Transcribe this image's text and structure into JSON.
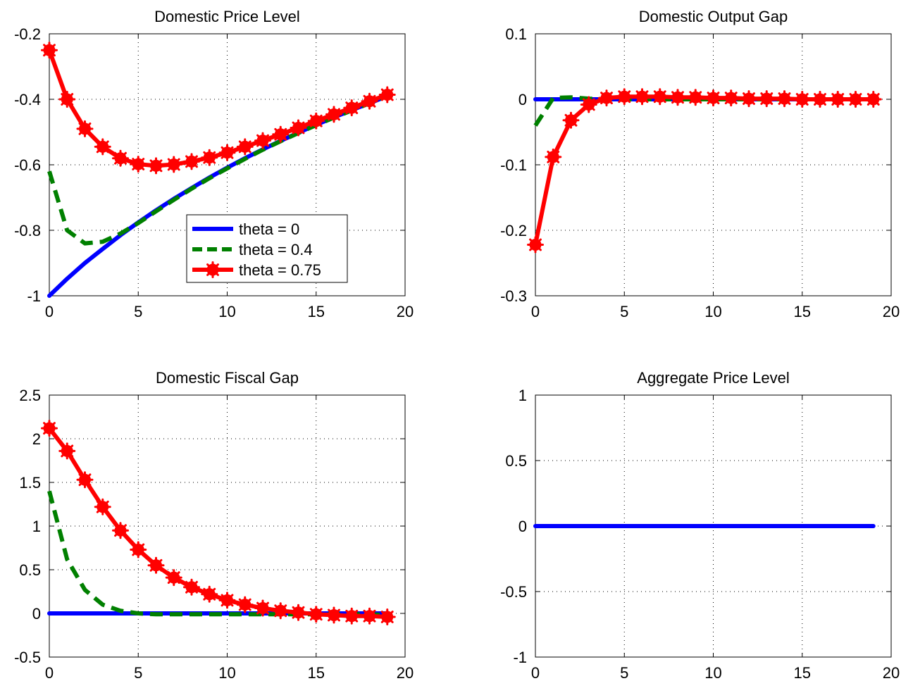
{
  "colors": {
    "theta_0": "#0000ff",
    "theta_0_4": "#008000",
    "theta_0_75": "#ff0000",
    "axes": "#000000",
    "background": "#ffffff"
  },
  "chart_data": [
    {
      "type": "line",
      "title": "Domestic Price Level",
      "xlabel": "",
      "ylabel": "",
      "xlim": [
        0,
        20
      ],
      "ylim": [
        -1,
        -0.2
      ],
      "xticks": [
        0,
        5,
        10,
        15,
        20
      ],
      "xtick_labels": [
        "0",
        "5",
        "10",
        "15",
        "20"
      ],
      "yticks": [
        -1,
        -0.8,
        -0.6,
        -0.4,
        -0.2
      ],
      "ytick_labels": [
        "-1",
        "-0.8",
        "-0.6",
        "-0.4",
        "-0.2"
      ],
      "grid": true,
      "legend": {
        "placement": "center-right",
        "entries": [
          "theta = 0",
          "theta = 0.4",
          "theta = 0.75"
        ]
      },
      "x": [
        0,
        1,
        2,
        3,
        4,
        5,
        6,
        7,
        8,
        9,
        10,
        11,
        12,
        13,
        14,
        15,
        16,
        17,
        18,
        19
      ],
      "series": [
        {
          "name": "theta = 0",
          "style": "solid",
          "color": "#0000ff",
          "values": [
            -1.0,
            -0.948,
            -0.9,
            -0.857,
            -0.815,
            -0.776,
            -0.739,
            -0.704,
            -0.671,
            -0.639,
            -0.609,
            -0.58,
            -0.553,
            -0.527,
            -0.502,
            -0.478,
            -0.455,
            -0.433,
            -0.412,
            -0.39
          ]
        },
        {
          "name": "theta = 0.4",
          "style": "dashed",
          "color": "#008000",
          "values": [
            -0.62,
            -0.8,
            -0.84,
            -0.835,
            -0.81,
            -0.778,
            -0.742,
            -0.707,
            -0.673,
            -0.641,
            -0.611,
            -0.582,
            -0.554,
            -0.528,
            -0.503,
            -0.479,
            -0.456,
            -0.434,
            -0.412,
            -0.39
          ]
        },
        {
          "name": "theta = 0.75",
          "style": "solid-markers",
          "color": "#ff0000",
          "values": [
            -0.25,
            -0.4,
            -0.49,
            -0.545,
            -0.58,
            -0.598,
            -0.603,
            -0.599,
            -0.59,
            -0.578,
            -0.563,
            -0.545,
            -0.526,
            -0.507,
            -0.487,
            -0.466,
            -0.446,
            -0.426,
            -0.406,
            -0.386
          ]
        }
      ]
    },
    {
      "type": "line",
      "title": "Domestic Output Gap",
      "xlabel": "",
      "ylabel": "",
      "xlim": [
        0,
        20
      ],
      "ylim": [
        -0.3,
        0.1
      ],
      "xticks": [
        0,
        5,
        10,
        15,
        20
      ],
      "xtick_labels": [
        "0",
        "5",
        "10",
        "15",
        "20"
      ],
      "yticks": [
        -0.3,
        -0.2,
        -0.1,
        0,
        0.1
      ],
      "ytick_labels": [
        "-0.3",
        "-0.2",
        "-0.1",
        "0",
        "0.1"
      ],
      "grid": true,
      "x": [
        0,
        1,
        2,
        3,
        4,
        5,
        6,
        7,
        8,
        9,
        10,
        11,
        12,
        13,
        14,
        15,
        16,
        17,
        18,
        19
      ],
      "series": [
        {
          "name": "theta = 0",
          "style": "solid",
          "color": "#0000ff",
          "values": [
            0,
            0,
            0,
            0,
            0,
            0,
            0,
            0,
            0,
            0,
            0,
            0,
            0,
            0,
            0,
            0,
            0,
            0,
            0,
            0
          ]
        },
        {
          "name": "theta = 0.4",
          "style": "dashed",
          "color": "#008000",
          "values": [
            -0.04,
            0.002,
            0.003,
            0.001,
            0.0,
            0.0,
            0.0,
            0.0,
            0.0,
            0.0,
            0.0,
            0.0,
            0.0,
            0.0,
            0.0,
            0.0,
            0.0,
            0.0,
            0.0,
            0.0
          ]
        },
        {
          "name": "theta = 0.75",
          "style": "solid-markers",
          "color": "#ff0000",
          "values": [
            -0.222,
            -0.088,
            -0.032,
            -0.008,
            0.002,
            0.004,
            0.004,
            0.004,
            0.003,
            0.003,
            0.002,
            0.002,
            0.001,
            0.001,
            0.001,
            0.0,
            0.0,
            0.0,
            0.0,
            0.0
          ]
        }
      ]
    },
    {
      "type": "line",
      "title": "Domestic Fiscal Gap",
      "xlabel": "",
      "ylabel": "",
      "xlim": [
        0,
        20
      ],
      "ylim": [
        -0.5,
        2.5
      ],
      "xticks": [
        0,
        5,
        10,
        15,
        20
      ],
      "xtick_labels": [
        "0",
        "5",
        "10",
        "15",
        "20"
      ],
      "yticks": [
        -0.5,
        0,
        0.5,
        1,
        1.5,
        2,
        2.5
      ],
      "ytick_labels": [
        "-0.5",
        "0",
        "0.5",
        "1",
        "1.5",
        "2",
        "2.5"
      ],
      "grid": true,
      "x": [
        0,
        1,
        2,
        3,
        4,
        5,
        6,
        7,
        8,
        9,
        10,
        11,
        12,
        13,
        14,
        15,
        16,
        17,
        18,
        19
      ],
      "series": [
        {
          "name": "theta = 0",
          "style": "solid",
          "color": "#0000ff",
          "values": [
            0,
            0,
            0,
            0,
            0,
            0,
            0,
            0,
            0,
            0,
            0,
            0,
            0,
            0,
            0,
            0,
            0,
            0,
            0,
            0
          ]
        },
        {
          "name": "theta = 0.4",
          "style": "dashed",
          "color": "#008000",
          "values": [
            1.4,
            0.62,
            0.27,
            0.1,
            0.03,
            0.0,
            -0.01,
            -0.01,
            -0.01,
            -0.01,
            -0.01,
            -0.01,
            -0.01,
            -0.01,
            -0.01,
            -0.01,
            -0.01,
            -0.01,
            -0.01,
            -0.02
          ]
        },
        {
          "name": "theta = 0.75",
          "style": "solid-markers",
          "color": "#ff0000",
          "values": [
            2.12,
            1.86,
            1.53,
            1.22,
            0.95,
            0.73,
            0.55,
            0.41,
            0.3,
            0.22,
            0.15,
            0.1,
            0.06,
            0.03,
            0.01,
            -0.01,
            -0.02,
            -0.03,
            -0.03,
            -0.04
          ]
        }
      ]
    },
    {
      "type": "line",
      "title": "Aggregate Price Level",
      "xlabel": "",
      "ylabel": "",
      "xlim": [
        0,
        20
      ],
      "ylim": [
        -1,
        1
      ],
      "xticks": [
        0,
        5,
        10,
        15,
        20
      ],
      "xtick_labels": [
        "0",
        "5",
        "10",
        "15",
        "20"
      ],
      "yticks": [
        -1,
        -0.5,
        0,
        0.5,
        1
      ],
      "ytick_labels": [
        "-1",
        "-0.5",
        "0",
        "0.5",
        "1"
      ],
      "grid": true,
      "x": [
        0,
        1,
        2,
        3,
        4,
        5,
        6,
        7,
        8,
        9,
        10,
        11,
        12,
        13,
        14,
        15,
        16,
        17,
        18,
        19
      ],
      "series": [
        {
          "name": "theta = 0",
          "style": "solid",
          "color": "#0000ff",
          "values": [
            0,
            0,
            0,
            0,
            0,
            0,
            0,
            0,
            0,
            0,
            0,
            0,
            0,
            0,
            0,
            0,
            0,
            0,
            0,
            0
          ]
        }
      ]
    }
  ]
}
